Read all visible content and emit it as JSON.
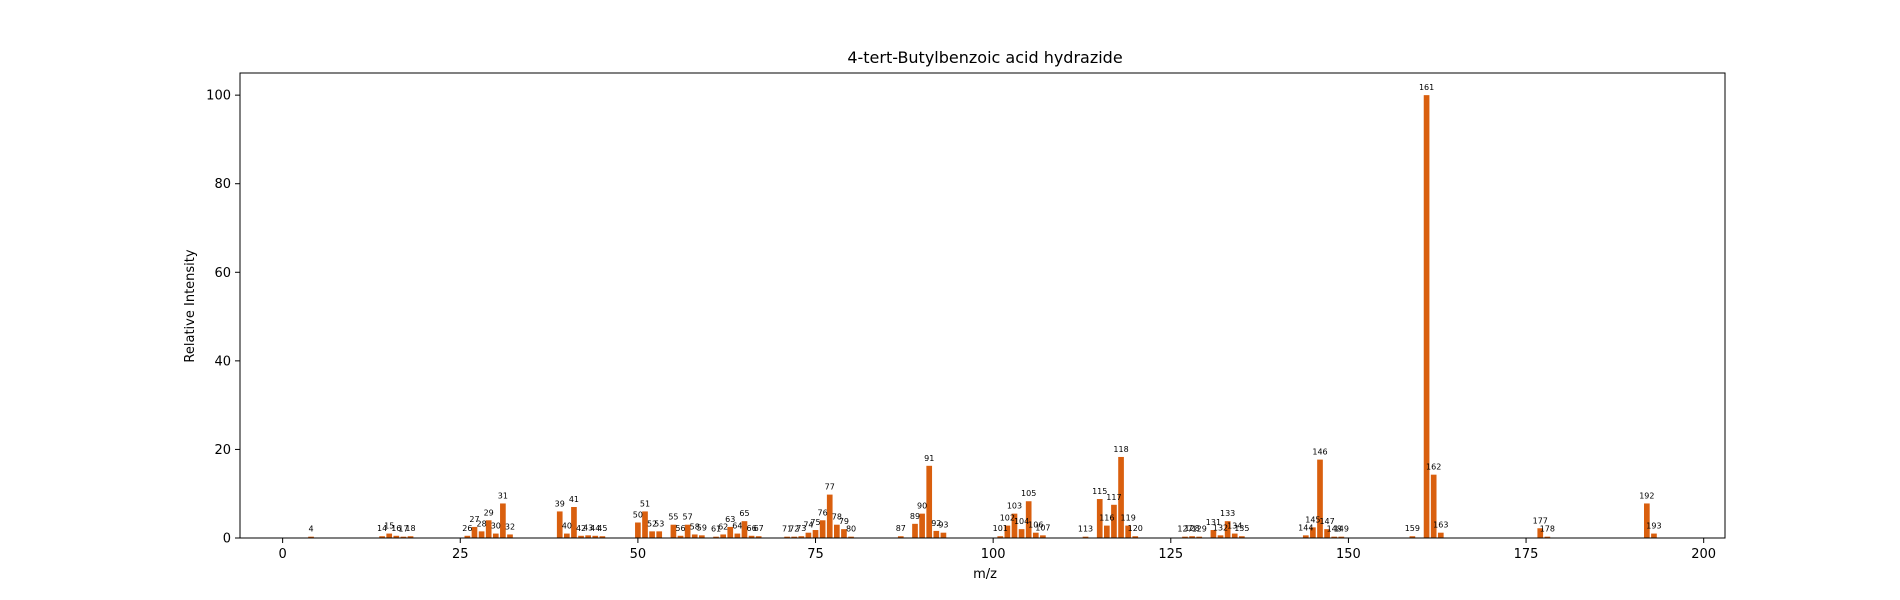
{
  "chart_data": {
    "type": "bar",
    "title": "4-tert-Butylbenzoic acid hydrazide",
    "xlabel": "m/z",
    "ylabel": "Relative Intensity",
    "xlim": [
      -6,
      203
    ],
    "ylim": [
      0,
      105
    ],
    "xticks": [
      0,
      25,
      50,
      75,
      100,
      125,
      150,
      175,
      200
    ],
    "yticks": [
      0,
      20,
      40,
      60,
      80,
      100
    ],
    "grid": false,
    "legend": "none",
    "bar_color": "#d95f0e",
    "peaks": [
      {
        "mz": 4,
        "intensity": 0.3
      },
      {
        "mz": 14,
        "intensity": 0.4
      },
      {
        "mz": 15,
        "intensity": 1.0
      },
      {
        "mz": 16,
        "intensity": 0.5
      },
      {
        "mz": 17,
        "intensity": 0.3
      },
      {
        "mz": 18,
        "intensity": 0.4
      },
      {
        "mz": 26,
        "intensity": 0.5
      },
      {
        "mz": 27,
        "intensity": 2.5
      },
      {
        "mz": 28,
        "intensity": 1.5
      },
      {
        "mz": 29,
        "intensity": 4.0
      },
      {
        "mz": 30,
        "intensity": 1.0
      },
      {
        "mz": 31,
        "intensity": 7.8
      },
      {
        "mz": 32,
        "intensity": 0.8
      },
      {
        "mz": 39,
        "intensity": 6.0
      },
      {
        "mz": 40,
        "intensity": 1.0
      },
      {
        "mz": 41,
        "intensity": 7.0
      },
      {
        "mz": 42,
        "intensity": 0.5
      },
      {
        "mz": 43,
        "intensity": 0.6
      },
      {
        "mz": 44,
        "intensity": 0.5
      },
      {
        "mz": 45,
        "intensity": 0.4
      },
      {
        "mz": 50,
        "intensity": 3.5
      },
      {
        "mz": 51,
        "intensity": 6.0
      },
      {
        "mz": 52,
        "intensity": 1.5
      },
      {
        "mz": 53,
        "intensity": 1.5
      },
      {
        "mz": 55,
        "intensity": 3.0
      },
      {
        "mz": 56,
        "intensity": 0.5
      },
      {
        "mz": 57,
        "intensity": 3.0
      },
      {
        "mz": 58,
        "intensity": 0.8
      },
      {
        "mz": 59,
        "intensity": 0.6
      },
      {
        "mz": 61,
        "intensity": 0.3
      },
      {
        "mz": 62,
        "intensity": 0.8
      },
      {
        "mz": 63,
        "intensity": 2.5
      },
      {
        "mz": 64,
        "intensity": 1.0
      },
      {
        "mz": 65,
        "intensity": 3.8
      },
      {
        "mz": 66,
        "intensity": 0.5
      },
      {
        "mz": 67,
        "intensity": 0.4
      },
      {
        "mz": 71,
        "intensity": 0.3
      },
      {
        "mz": 72,
        "intensity": 0.3
      },
      {
        "mz": 73,
        "intensity": 0.4
      },
      {
        "mz": 74,
        "intensity": 1.2
      },
      {
        "mz": 75,
        "intensity": 1.8
      },
      {
        "mz": 76,
        "intensity": 4.0
      },
      {
        "mz": 77,
        "intensity": 9.8
      },
      {
        "mz": 78,
        "intensity": 3.0
      },
      {
        "mz": 79,
        "intensity": 2.0
      },
      {
        "mz": 80,
        "intensity": 0.3
      },
      {
        "mz": 87,
        "intensity": 0.4
      },
      {
        "mz": 89,
        "intensity": 3.2
      },
      {
        "mz": 90,
        "intensity": 5.5
      },
      {
        "mz": 91,
        "intensity": 16.3
      },
      {
        "mz": 92,
        "intensity": 1.6
      },
      {
        "mz": 93,
        "intensity": 1.2
      },
      {
        "mz": 101,
        "intensity": 0.4
      },
      {
        "mz": 102,
        "intensity": 2.8
      },
      {
        "mz": 103,
        "intensity": 5.5
      },
      {
        "mz": 104,
        "intensity": 2.0
      },
      {
        "mz": 105,
        "intensity": 8.3
      },
      {
        "mz": 106,
        "intensity": 1.2
      },
      {
        "mz": 107,
        "intensity": 0.6
      },
      {
        "mz": 113,
        "intensity": 0.3
      },
      {
        "mz": 115,
        "intensity": 8.8
      },
      {
        "mz": 116,
        "intensity": 2.8
      },
      {
        "mz": 117,
        "intensity": 7.5
      },
      {
        "mz": 118,
        "intensity": 18.3
      },
      {
        "mz": 119,
        "intensity": 2.8
      },
      {
        "mz": 120,
        "intensity": 0.4
      },
      {
        "mz": 127,
        "intensity": 0.3
      },
      {
        "mz": 128,
        "intensity": 0.4
      },
      {
        "mz": 129,
        "intensity": 0.3
      },
      {
        "mz": 131,
        "intensity": 1.8
      },
      {
        "mz": 132,
        "intensity": 0.6
      },
      {
        "mz": 133,
        "intensity": 3.8
      },
      {
        "mz": 134,
        "intensity": 1.0
      },
      {
        "mz": 135,
        "intensity": 0.4
      },
      {
        "mz": 144,
        "intensity": 0.6
      },
      {
        "mz": 145,
        "intensity": 2.4
      },
      {
        "mz": 146,
        "intensity": 17.7
      },
      {
        "mz": 147,
        "intensity": 2.0
      },
      {
        "mz": 148,
        "intensity": 0.3
      },
      {
        "mz": 149,
        "intensity": 0.3
      },
      {
        "mz": 159,
        "intensity": 0.4
      },
      {
        "mz": 161,
        "intensity": 100.0
      },
      {
        "mz": 162,
        "intensity": 14.3
      },
      {
        "mz": 163,
        "intensity": 1.2
      },
      {
        "mz": 177,
        "intensity": 2.2
      },
      {
        "mz": 178,
        "intensity": 0.3
      },
      {
        "mz": 192,
        "intensity": 7.8
      },
      {
        "mz": 193,
        "intensity": 1.0
      }
    ]
  }
}
